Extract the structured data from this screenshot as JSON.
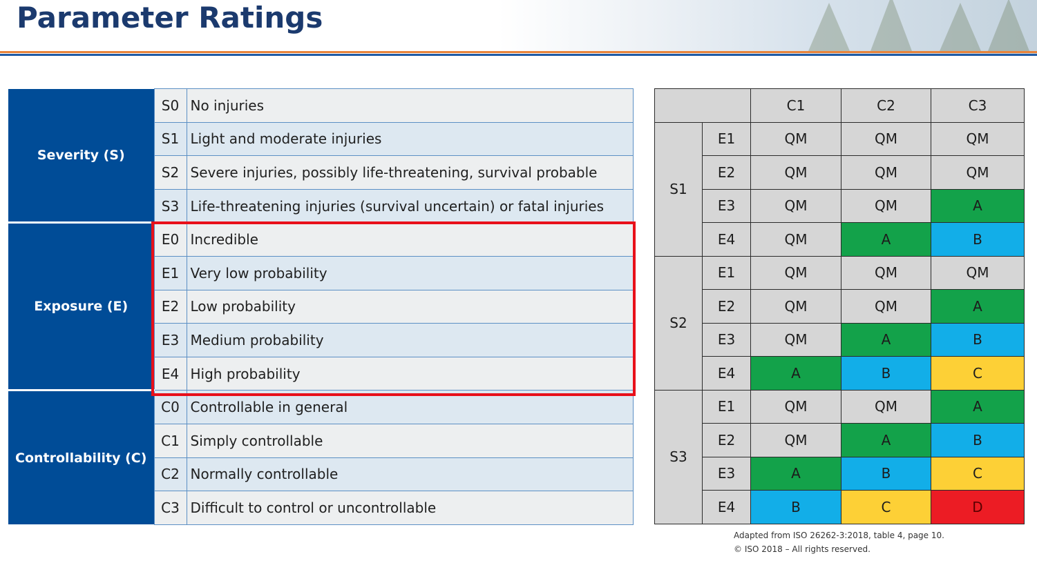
{
  "header": {
    "title": "Parameter Ratings"
  },
  "parameters": [
    {
      "category": "Severity (S)",
      "items": [
        {
          "code": "S0",
          "description": "No injuries"
        },
        {
          "code": "S1",
          "description": "Light and moderate injuries"
        },
        {
          "code": "S2",
          "description": "Severe injuries, possibly life-threatening, survival probable"
        },
        {
          "code": "S3",
          "description": "Life-threatening injuries (survival uncertain) or fatal injuries"
        }
      ]
    },
    {
      "category": "Exposure (E)",
      "highlighted": true,
      "items": [
        {
          "code": "E0",
          "description": "Incredible"
        },
        {
          "code": "E1",
          "description": "Very low probability"
        },
        {
          "code": "E2",
          "description": "Low probability"
        },
        {
          "code": "E3",
          "description": "Medium probability"
        },
        {
          "code": "E4",
          "description": "High probability"
        }
      ]
    },
    {
      "category": "Controllability (C)",
      "items": [
        {
          "code": "C0",
          "description": "Controllable in general"
        },
        {
          "code": "C1",
          "description": "Simply controllable"
        },
        {
          "code": "C2",
          "description": "Normally controllable"
        },
        {
          "code": "C3",
          "description": "Difficult to control or uncontrollable"
        }
      ]
    }
  ],
  "asil_matrix": {
    "columns": [
      "C1",
      "C2",
      "C3"
    ],
    "groups": [
      {
        "severity": "S1",
        "rows": [
          {
            "exposure": "E1",
            "values": [
              "QM",
              "QM",
              "QM"
            ]
          },
          {
            "exposure": "E2",
            "values": [
              "QM",
              "QM",
              "QM"
            ]
          },
          {
            "exposure": "E3",
            "values": [
              "QM",
              "QM",
              "A"
            ]
          },
          {
            "exposure": "E4",
            "values": [
              "QM",
              "A",
              "B"
            ]
          }
        ]
      },
      {
        "severity": "S2",
        "rows": [
          {
            "exposure": "E1",
            "values": [
              "QM",
              "QM",
              "QM"
            ]
          },
          {
            "exposure": "E2",
            "values": [
              "QM",
              "QM",
              "A"
            ]
          },
          {
            "exposure": "E3",
            "values": [
              "QM",
              "A",
              "B"
            ]
          },
          {
            "exposure": "E4",
            "values": [
              "A",
              "B",
              "C"
            ]
          }
        ]
      },
      {
        "severity": "S3",
        "rows": [
          {
            "exposure": "E1",
            "values": [
              "QM",
              "QM",
              "A"
            ]
          },
          {
            "exposure": "E2",
            "values": [
              "QM",
              "A",
              "B"
            ]
          },
          {
            "exposure": "E3",
            "values": [
              "A",
              "B",
              "C"
            ]
          },
          {
            "exposure": "E4",
            "values": [
              "B",
              "C",
              "D"
            ]
          }
        ]
      }
    ],
    "colors": {
      "QM": "#d6d6d6",
      "A": "#13a24a",
      "B": "#12aee8",
      "C": "#fdd036",
      "D": "#ec1c24"
    }
  },
  "footnote": {
    "line1": "Adapted from ISO 26262-3:2018, table 4, page 10.",
    "line2": "© ISO 2018 – All rights reserved."
  },
  "colors": {
    "title": "#1b3a6e",
    "category_fill": "#004c97",
    "highlight_border": "#e8101a",
    "rule_orange": "#e8833a",
    "rule_blue": "#1f5aa5"
  }
}
